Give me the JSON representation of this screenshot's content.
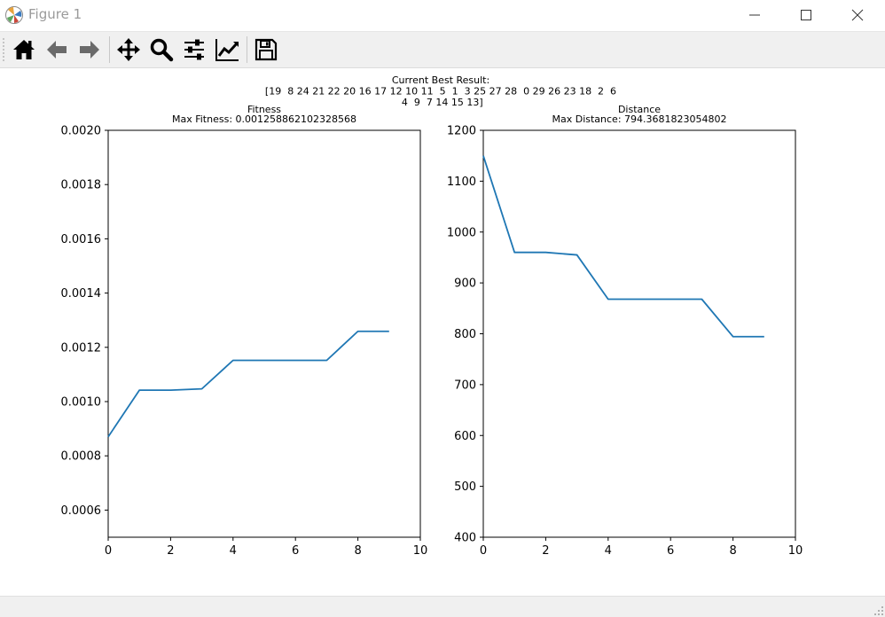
{
  "window": {
    "title": "Figure 1"
  },
  "toolbar": {
    "tools": [
      {
        "name": "home-button",
        "icon": "home-icon"
      },
      {
        "name": "back-button",
        "icon": "arrow-left-icon"
      },
      {
        "name": "forward-button",
        "icon": "arrow-right-icon"
      },
      {
        "name": "pan-button",
        "icon": "move-icon"
      },
      {
        "name": "zoom-button",
        "icon": "magnifier-icon"
      },
      {
        "name": "configure-subplots-button",
        "icon": "sliders-icon"
      },
      {
        "name": "edit-axis-button",
        "icon": "line-chart-icon"
      },
      {
        "name": "save-button",
        "icon": "floppy-disk-icon"
      }
    ]
  },
  "figure": {
    "suptitle_lines": [
      "Current Best Result:",
      "[19  8 24 21 22 20 16 17 12 10 11  5  1  3 25 27 28  0 29 26 23 18  2  6",
      " 4  9  7 14 15 13]"
    ]
  },
  "chart_data": [
    {
      "type": "line",
      "title": "Fitness",
      "subtitle": "Max Fitness: 0.001258862102328568",
      "xlabel": "",
      "ylabel": "",
      "xlim": [
        0,
        10
      ],
      "ylim": [
        0.0005,
        0.002
      ],
      "xticks": [
        0,
        2,
        4,
        6,
        8,
        10
      ],
      "xtick_labels": [
        "0",
        "2",
        "4",
        "6",
        "8",
        "10"
      ],
      "yticks": [
        0.0006,
        0.0008,
        0.001,
        0.0012,
        0.0014,
        0.0016,
        0.0018,
        0.002
      ],
      "ytick_labels": [
        "0.0006",
        "0.0008",
        "0.0010",
        "0.0012",
        "0.0014",
        "0.0016",
        "0.0018",
        "0.0020"
      ],
      "grid": false,
      "color": "#1f77b4",
      "series": [
        {
          "x": [
            0,
            1,
            2,
            3,
            4,
            5,
            6,
            7,
            8,
            9
          ],
          "values": [
            0.00087,
            0.001042,
            0.001042,
            0.001047,
            0.001152,
            0.001152,
            0.001152,
            0.001152,
            0.001259,
            0.001259
          ]
        }
      ]
    },
    {
      "type": "line",
      "title": "Distance",
      "subtitle": "Max Distance: 794.3681823054802",
      "xlabel": "",
      "ylabel": "",
      "xlim": [
        0,
        10
      ],
      "ylim": [
        400,
        1200
      ],
      "xticks": [
        0,
        2,
        4,
        6,
        8,
        10
      ],
      "xtick_labels": [
        "0",
        "2",
        "4",
        "6",
        "8",
        "10"
      ],
      "yticks": [
        400,
        500,
        600,
        700,
        800,
        900,
        1000,
        1100,
        1200
      ],
      "ytick_labels": [
        "400",
        "500",
        "600",
        "700",
        "800",
        "900",
        "1000",
        "1100",
        "1200"
      ],
      "grid": false,
      "color": "#1f77b4",
      "series": [
        {
          "x": [
            0,
            1,
            2,
            3,
            4,
            5,
            6,
            7,
            8,
            9
          ],
          "values": [
            1150,
            960,
            960,
            955,
            868,
            868,
            868,
            868,
            794.37,
            794.37
          ]
        }
      ]
    }
  ]
}
